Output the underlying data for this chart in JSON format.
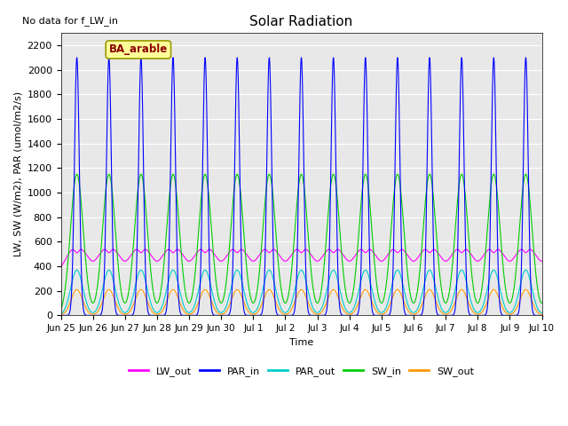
{
  "title": "Solar Radiation",
  "xlabel": "Time",
  "ylabel": "LW, SW (W/m2), PAR (umol/m2/s)",
  "no_data_text": "No data for f_LW_in",
  "legend_label": "BA_arable",
  "ylim": [
    0,
    2300
  ],
  "colors": {
    "LW_out": "#ff00ff",
    "PAR_in": "#0000ff",
    "PAR_out": "#00cccc",
    "SW_in": "#00cc00",
    "SW_out": "#ff9900"
  },
  "background_color": "#e8e8e8",
  "tick_labels": [
    "Jun 25",
    "Jun 26",
    "Jun 27",
    "Jun 28",
    "Jun 29",
    "Jun 30",
    "Jul 1",
    "Jul 2",
    "Jul 3",
    "Jul 4",
    "Jul 5",
    "Jul 6",
    "Jul 7",
    "Jul 8",
    "Jul 9",
    "Jul 10"
  ],
  "PAR_in_peak": 2100,
  "PAR_out_peak": 370,
  "SW_in_peak": 1150,
  "SW_out_peak": 210,
  "LW_out_base": 385,
  "LW_out_day_peak": 560,
  "LW_out_dip": 50
}
